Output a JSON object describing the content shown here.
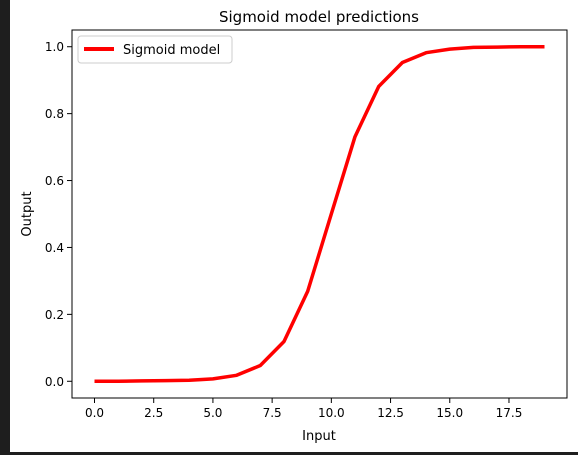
{
  "chart_data": {
    "type": "line",
    "title": "Sigmoid model predictions",
    "xlabel": "Input",
    "ylabel": "Output",
    "xlim": [
      -0.95,
      19.95
    ],
    "ylim": [
      -0.05,
      1.05
    ],
    "xticks": [
      0.0,
      2.5,
      5.0,
      7.5,
      10.0,
      12.5,
      15.0,
      17.5
    ],
    "xtick_labels": [
      "0.0",
      "2.5",
      "5.0",
      "7.5",
      "10.0",
      "12.5",
      "15.0",
      "17.5"
    ],
    "yticks": [
      0.0,
      0.2,
      0.4,
      0.6,
      0.8,
      1.0
    ],
    "ytick_labels": [
      "0.0",
      "0.2",
      "0.4",
      "0.6",
      "0.8",
      "1.0"
    ],
    "grid": false,
    "legend_position": "top-left",
    "series": [
      {
        "name": "Sigmoid model",
        "color": "#ff0000",
        "x": [
          0,
          1,
          2,
          3,
          4,
          5,
          6,
          7,
          8,
          9,
          10,
          11,
          12,
          13,
          14,
          15,
          16,
          17,
          18,
          19
        ],
        "y": [
          0.0,
          0.0,
          0.001,
          0.002,
          0.003,
          0.007,
          0.018,
          0.047,
          0.119,
          0.269,
          0.5,
          0.731,
          0.881,
          0.953,
          0.982,
          0.993,
          0.998,
          0.999,
          1.0,
          1.0
        ]
      }
    ]
  }
}
